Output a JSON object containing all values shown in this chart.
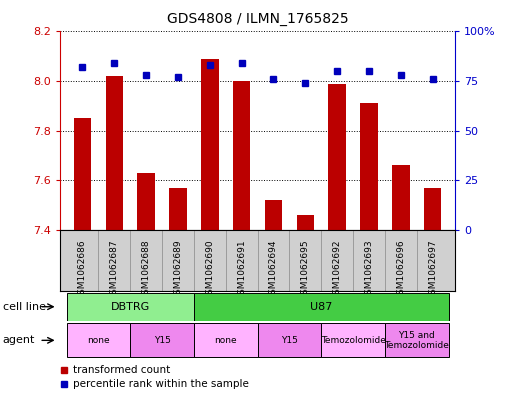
{
  "title": "GDS4808 / ILMN_1765825",
  "samples": [
    "GSM1062686",
    "GSM1062687",
    "GSM1062688",
    "GSM1062689",
    "GSM1062690",
    "GSM1062691",
    "GSM1062694",
    "GSM1062695",
    "GSM1062692",
    "GSM1062693",
    "GSM1062696",
    "GSM1062697"
  ],
  "red_values": [
    7.85,
    8.02,
    7.63,
    7.57,
    8.09,
    8.0,
    7.52,
    7.46,
    7.99,
    7.91,
    7.66,
    7.57
  ],
  "blue_values": [
    82,
    84,
    78,
    77,
    83,
    84,
    76,
    74,
    80,
    80,
    78,
    76
  ],
  "ylim_left": [
    7.4,
    8.2
  ],
  "ylim_right": [
    0,
    100
  ],
  "yticks_left": [
    7.4,
    7.6,
    7.8,
    8.0,
    8.2
  ],
  "yticks_right": [
    0,
    25,
    50,
    75,
    100
  ],
  "cell_line_groups": [
    {
      "label": "DBTRG",
      "start": 0,
      "end": 3,
      "color": "#90EE90"
    },
    {
      "label": "U87",
      "start": 4,
      "end": 11,
      "color": "#44CC44"
    }
  ],
  "agent_groups": [
    {
      "label": "none",
      "start": 0,
      "end": 1,
      "color": "#FFB3FF"
    },
    {
      "label": "Y15",
      "start": 2,
      "end": 3,
      "color": "#EE88EE"
    },
    {
      "label": "none",
      "start": 4,
      "end": 5,
      "color": "#FFB3FF"
    },
    {
      "label": "Y15",
      "start": 6,
      "end": 7,
      "color": "#EE88EE"
    },
    {
      "label": "Temozolomide",
      "start": 8,
      "end": 9,
      "color": "#FFB3FF"
    },
    {
      "label": "Y15 and\nTemozolomide",
      "start": 10,
      "end": 11,
      "color": "#EE88EE"
    }
  ],
  "bar_color": "#BB0000",
  "dot_color": "#0000BB",
  "background_color": "#ffffff",
  "tick_color_left": "#CC0000",
  "tick_color_right": "#0000CC",
  "legend_red": "transformed count",
  "legend_blue": "percentile rank within the sample",
  "sample_bg_color": "#D0D0D0",
  "sample_sep_color": "#888888",
  "cell_line_label": "cell line",
  "agent_label": "agent"
}
